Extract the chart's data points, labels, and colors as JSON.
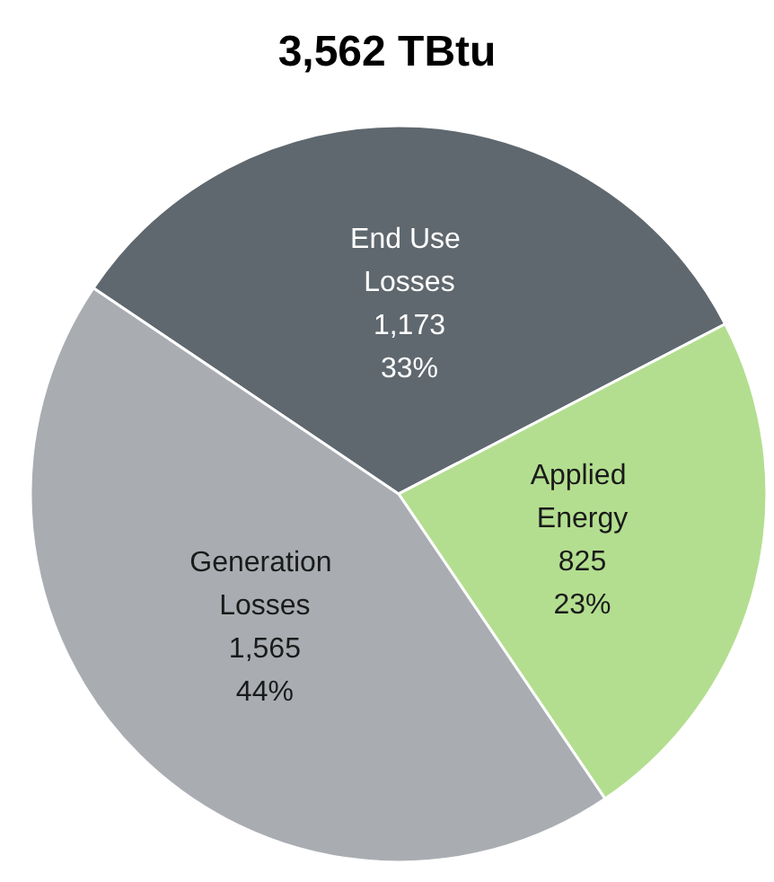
{
  "chart_data": {
    "type": "pie",
    "title": "3,562 TBtu",
    "categories": [
      "End Use Losses",
      "Applied Energy",
      "Generation Losses"
    ],
    "values": [
      1173,
      825,
      1565
    ],
    "colors": [
      "#5f686e",
      "#b3de8f",
      "#a9adb2"
    ],
    "value_labels": [
      "1,173\n33%",
      "825\n23%",
      "1,565\n44%"
    ],
    "legend": false
  }
}
